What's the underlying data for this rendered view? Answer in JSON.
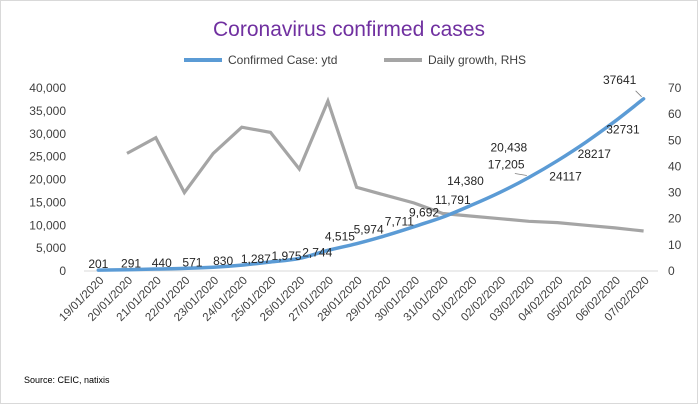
{
  "chart_data": {
    "type": "line",
    "title": "Coronavirus confirmed cases",
    "categories": [
      "19/01/2020",
      "20/01/2020",
      "21/01/2020",
      "22/01/2020",
      "23/01/2020",
      "24/01/2020",
      "25/01/2020",
      "26/01/2020",
      "27/01/2020",
      "28/01/2020",
      "29/01/2020",
      "30/01/2020",
      "31/01/2020",
      "01/02/2020",
      "02/02/2020",
      "03/02/2020",
      "04/02/2020",
      "05/02/2020",
      "06/02/2020",
      "07/02/2020"
    ],
    "series": [
      {
        "name": "Confirmed Case: ytd",
        "axis": "left",
        "color": "#5b9bd5",
        "values": [
          201,
          291,
          440,
          571,
          830,
          1287,
          1975,
          2744,
          4515,
          5974,
          7711,
          9692,
          11791,
          14380,
          17205,
          20438,
          24117,
          28217,
          32731,
          37641
        ],
        "labels": [
          "201",
          "291",
          "440",
          "571",
          "830",
          "1,287",
          "1,975",
          "2,744",
          "4,515",
          "5,974",
          "7,711",
          "9,692",
          "11,791",
          "14,380",
          "17,205",
          "20,438",
          "24117",
          "28217",
          "32731",
          "37641"
        ]
      },
      {
        "name": "Daily growth, RHS",
        "axis": "right",
        "color": "#a5a5a5",
        "values": [
          null,
          45,
          51,
          30,
          45,
          55,
          53,
          39,
          65,
          32,
          29,
          26,
          22,
          21,
          20,
          19,
          18.5,
          17.5,
          16.5,
          15.3
        ]
      }
    ],
    "yleft": {
      "min": 0,
      "max": 40000,
      "ticks": [
        "0",
        "5,000",
        "10,000",
        "15,000",
        "20,000",
        "25,000",
        "30,000",
        "35,000",
        "40,000"
      ]
    },
    "yright": {
      "min": 0,
      "max": 70,
      "ticks": [
        "0",
        "10",
        "20",
        "30",
        "40",
        "50",
        "60",
        "70"
      ]
    },
    "legend_position": "top",
    "grid": false
  },
  "source": "Source:  CEIC, natixis"
}
